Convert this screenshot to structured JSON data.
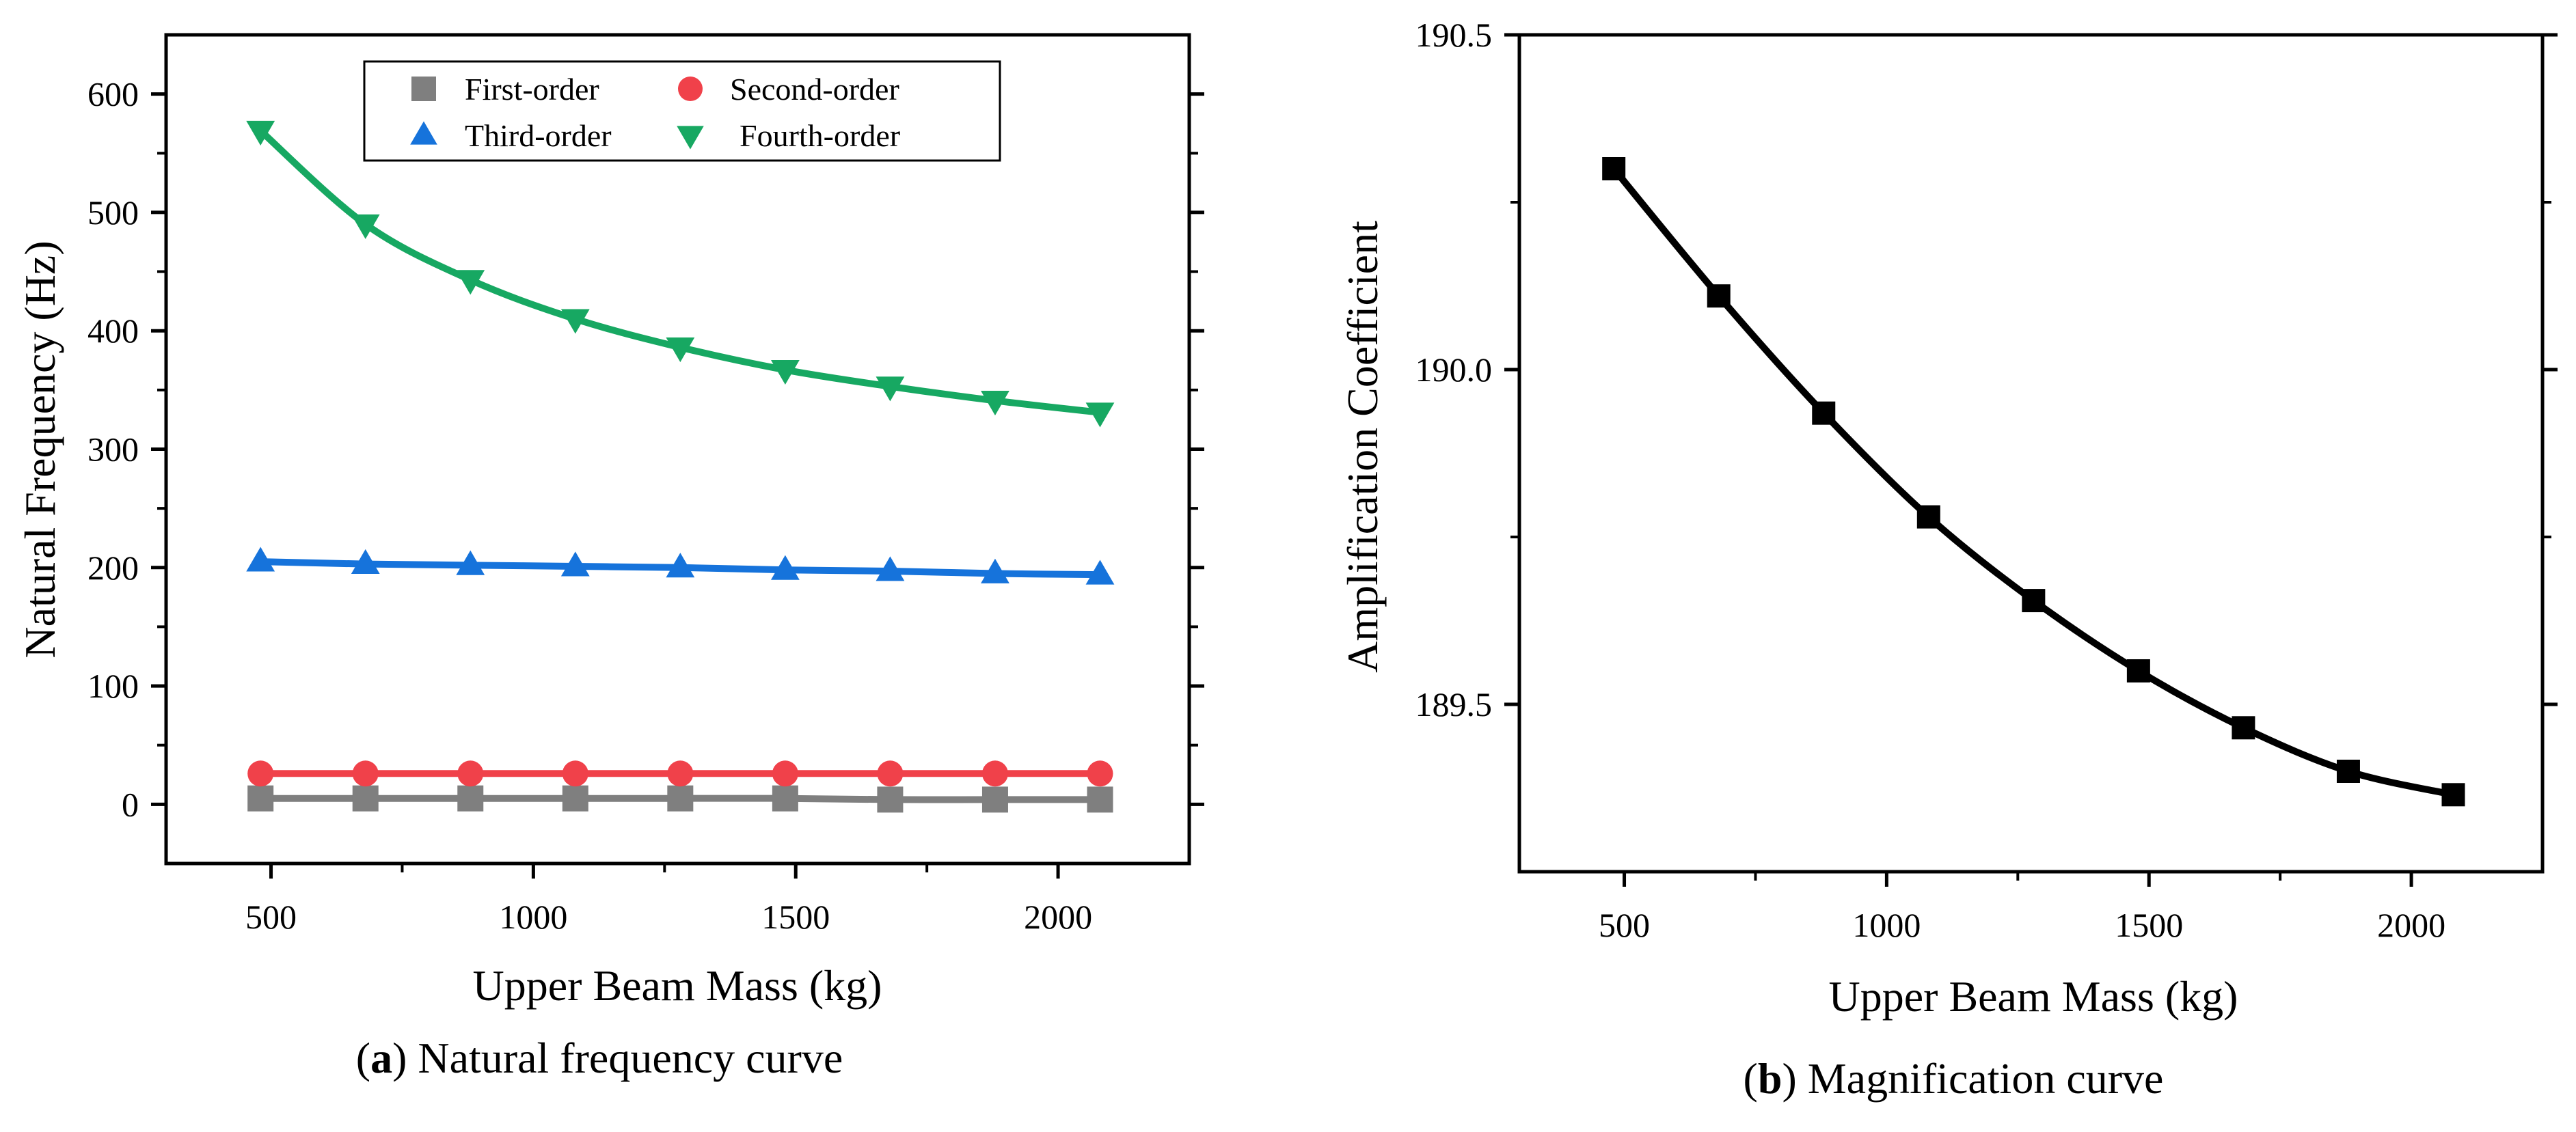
{
  "chart_data": [
    {
      "type": "line",
      "panel_letter": "a",
      "caption": "Natural frequency curve",
      "xlabel": "Upper Beam Mass (kg)",
      "ylabel": "Natural Frequency (Hz)",
      "xlim": [
        300,
        2250
      ],
      "ylim": [
        -50,
        650
      ],
      "xticks": [
        500,
        1000,
        1500,
        2000
      ],
      "yticks": [
        0,
        100,
        200,
        300,
        400,
        500,
        600
      ],
      "grid": false,
      "legend": "top-center",
      "x": [
        480,
        680,
        880,
        1080,
        1280,
        1480,
        1680,
        1880,
        2080
      ],
      "series": [
        {
          "name": "First-order",
          "marker": "square",
          "color": "#7f7f7f",
          "values": [
            5,
            5,
            5,
            5,
            5,
            5,
            4,
            4,
            4
          ]
        },
        {
          "name": "Second-order",
          "marker": "circle",
          "color": "#f0414a",
          "values": [
            26,
            26,
            26,
            26,
            26,
            26,
            26,
            26,
            26
          ]
        },
        {
          "name": "Third-order",
          "marker": "triangle-up",
          "color": "#1673db",
          "values": [
            205,
            203,
            202,
            201,
            200,
            198,
            197,
            195,
            194
          ]
        },
        {
          "name": "Fourth-order",
          "marker": "triangle-down",
          "color": "#17a862",
          "values": [
            569,
            490,
            443,
            410,
            386,
            367,
            353,
            341,
            331
          ]
        }
      ]
    },
    {
      "type": "line",
      "panel_letter": "b",
      "caption": "Magnification curve",
      "xlabel": "Upper Beam Mass (kg)",
      "ylabel": "Amplification Coefficient",
      "xlim": [
        300,
        2250
      ],
      "ylim": [
        189.25,
        190.5
      ],
      "xticks": [
        500,
        1000,
        1500,
        2000
      ],
      "yticks": [
        189.5,
        190.0,
        190.5
      ],
      "ytick_labels": [
        "189.5",
        "190.0",
        "190.5"
      ],
      "grid": false,
      "x": [
        480,
        680,
        880,
        1080,
        1280,
        1480,
        1680,
        1880,
        2080
      ],
      "series": [
        {
          "marker": "square",
          "color": "#000000",
          "values": [
            190.3,
            190.11,
            189.935,
            189.78,
            189.655,
            189.55,
            189.465,
            189.4,
            189.365
          ]
        }
      ]
    }
  ]
}
